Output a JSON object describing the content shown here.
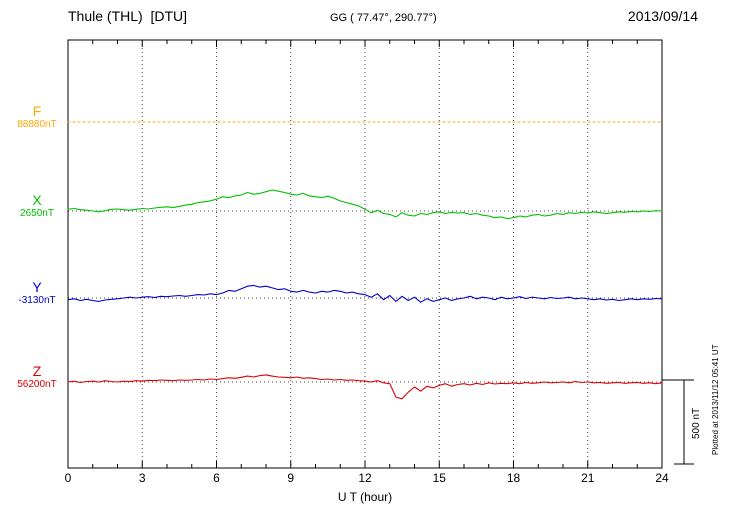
{
  "header": {
    "title": "Thule (THL)  [DTU]",
    "coords": "GG ( 77.47°, 290.77°)",
    "date": "2013/09/14"
  },
  "footer": {
    "xaxis_title": "U T (hour)",
    "scale_label": "500 nT",
    "plotted_at": "Plotted at 2013/11/12 05:41 UT"
  },
  "chart_data": {
    "type": "line",
    "title": "Thule (THL) [DTU] magnetogram 2013/09/14",
    "xlabel": "U T (hour)",
    "x_range": [
      0,
      24
    ],
    "x_ticks": [
      "0",
      "3",
      "6",
      "9",
      "12",
      "15",
      "18",
      "21",
      "24"
    ],
    "grid_hours": [
      3,
      6,
      9,
      12,
      15,
      18,
      21
    ],
    "grid": "dotted-vertical",
    "scale_bar_nT": 500,
    "legend_position": "left",
    "series": [
      {
        "name": "F",
        "baseline_label": "88880nT",
        "baseline_nT": 88880,
        "color": "#FFA500",
        "style": "dotted",
        "values": [
          0,
          0
        ]
      },
      {
        "name": "X",
        "baseline_label": "2650nT",
        "baseline_nT": 2650,
        "color": "#00C000",
        "style": "solid",
        "values": [
          10,
          15,
          8,
          5,
          0,
          -5,
          2,
          10,
          12,
          8,
          5,
          10,
          15,
          12,
          18,
          22,
          25,
          20,
          28,
          35,
          40,
          50,
          55,
          60,
          70,
          85,
          80,
          90,
          95,
          110,
          100,
          105,
          115,
          125,
          118,
          110,
          100,
          95,
          105,
          90,
          85,
          80,
          88,
          75,
          60,
          50,
          40,
          30,
          10,
          -10,
          5,
          -15,
          -20,
          -35,
          -10,
          -25,
          -30,
          -15,
          -20,
          -10,
          -5,
          -15,
          -8,
          -12,
          -10,
          -20,
          -15,
          -25,
          -30,
          -40,
          -35,
          -45,
          -40,
          -30,
          -35,
          -25,
          -20,
          -30,
          -25,
          -15,
          -20,
          -10,
          -15,
          -8,
          -12,
          -5,
          -10,
          -15,
          -10,
          -5,
          -8,
          -3,
          -5,
          0,
          -3,
          2,
          0
        ]
      },
      {
        "name": "Y",
        "baseline_label": "-3130nT",
        "baseline_nT": -3130,
        "color": "#0000CC",
        "style": "solid",
        "values": [
          -10,
          -5,
          -15,
          -8,
          -15,
          -20,
          -12,
          -8,
          -5,
          0,
          5,
          0,
          5,
          8,
          3,
          10,
          8,
          12,
          15,
          10,
          15,
          20,
          18,
          25,
          20,
          30,
          45,
          40,
          55,
          70,
          75,
          65,
          70,
          60,
          50,
          55,
          40,
          35,
          45,
          35,
          30,
          40,
          35,
          45,
          40,
          30,
          35,
          25,
          20,
          5,
          25,
          -10,
          15,
          -20,
          10,
          -15,
          5,
          -25,
          -5,
          -20,
          -10,
          0,
          -15,
          -5,
          0,
          10,
          -5,
          5,
          0,
          -10,
          5,
          -5,
          0,
          8,
          -3,
          5,
          0,
          -5,
          3,
          -3,
          0,
          5,
          -5,
          0,
          -5,
          -10,
          -5,
          -12,
          -8,
          -15,
          -10,
          -5,
          -10,
          -5,
          -8,
          -3,
          -5
        ]
      },
      {
        "name": "Z",
        "baseline_label": "56200nT",
        "baseline_nT": 56200,
        "color": "#DD0000",
        "style": "solid",
        "values": [
          0,
          5,
          -3,
          3,
          5,
          0,
          8,
          3,
          0,
          5,
          3,
          8,
          5,
          10,
          8,
          12,
          10,
          8,
          12,
          10,
          12,
          15,
          12,
          18,
          15,
          20,
          25,
          22,
          28,
          35,
          30,
          38,
          42,
          35,
          30,
          28,
          25,
          30,
          22,
          25,
          20,
          15,
          18,
          12,
          15,
          10,
          12,
          8,
          5,
          0,
          8,
          -5,
          -10,
          -90,
          -100,
          -60,
          -30,
          -55,
          -25,
          -35,
          -20,
          -10,
          -25,
          -15,
          -10,
          -18,
          -8,
          -15,
          -5,
          -12,
          -8,
          -10,
          -5,
          -10,
          -3,
          -8,
          -5,
          0,
          -5,
          -3,
          0,
          -5,
          3,
          -3,
          0,
          -5,
          -3,
          -8,
          -5,
          -3,
          -8,
          -5,
          -3,
          -8,
          -5,
          -10,
          -5
        ]
      }
    ]
  }
}
